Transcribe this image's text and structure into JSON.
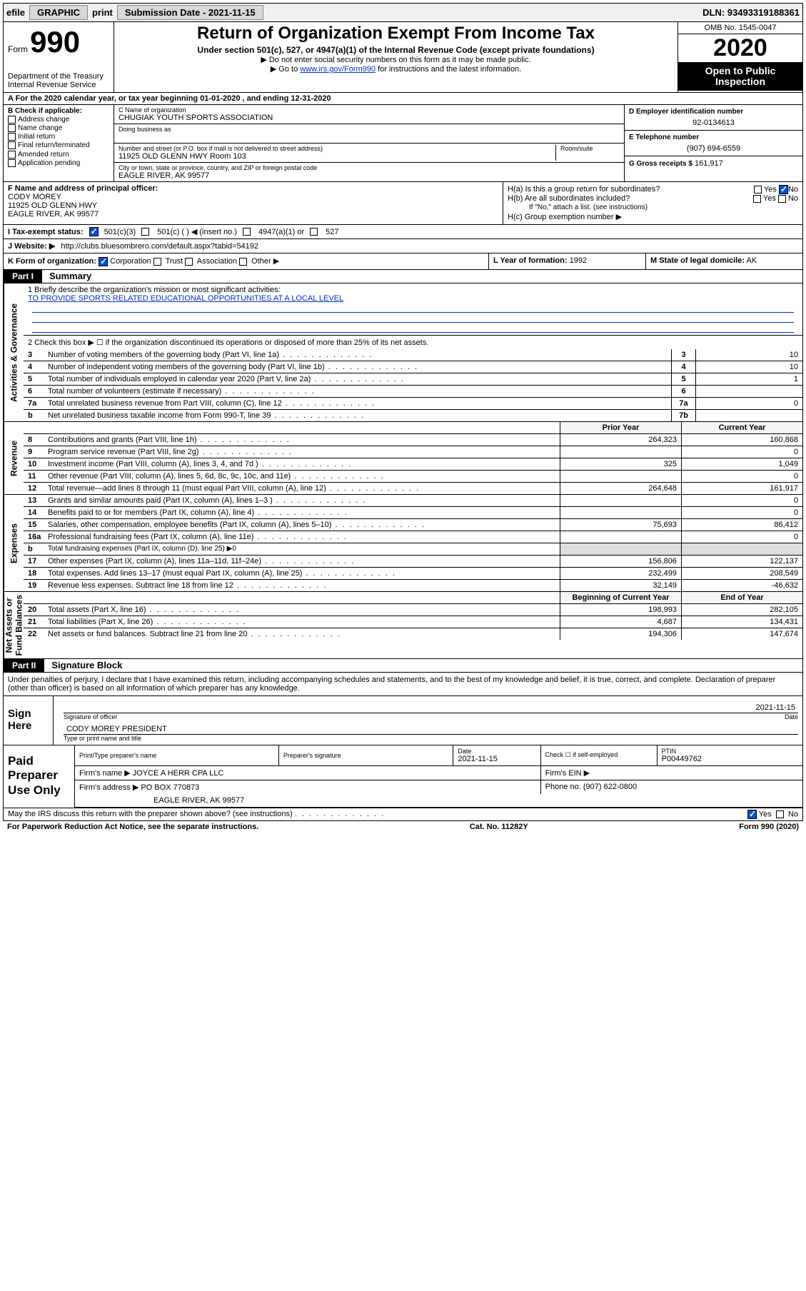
{
  "topbar": {
    "efile": "efile",
    "graphic": "GRAPHIC",
    "print": "print",
    "submission_label": "Submission Date - 2021-11-15",
    "dln": "DLN: 93493319188361"
  },
  "header": {
    "form_word": "Form",
    "form_num": "990",
    "dept": "Department of the Treasury\nInternal Revenue Service",
    "title": "Return of Organization Exempt From Income Tax",
    "sub": "Under section 501(c), 527, or 4947(a)(1) of the Internal Revenue Code (except private foundations)",
    "note1": "▶ Do not enter social security numbers on this form as it may be made public.",
    "note2_pre": "▶ Go to ",
    "note2_link": "www.irs.gov/Form990",
    "note2_post": " for instructions and the latest information.",
    "omb": "OMB No. 1545-0047",
    "year": "2020",
    "open": "Open to Public Inspection"
  },
  "row_a": "A For the 2020 calendar year, or tax year beginning 01-01-2020    , and ending 12-31-2020",
  "box_b": {
    "label": "B Check if applicable:",
    "items": [
      "Address change",
      "Name change",
      "Initial return",
      "Final return/terminated",
      "Amended return",
      "Application pending"
    ]
  },
  "box_c": {
    "name_lbl": "C Name of organization",
    "name": "CHUGIAK YOUTH SPORTS ASSOCIATION",
    "dba_lbl": "Doing business as",
    "addr_lbl": "Number and street (or P.O. box if mail is not delivered to street address)",
    "room_lbl": "Room/suite",
    "addr": "11925 OLD GLENN HWY Room 103",
    "city_lbl": "City or town, state or province, country, and ZIP or foreign postal code",
    "city": "EAGLE RIVER, AK  99577"
  },
  "box_d": {
    "lbl": "D Employer identification number",
    "val": "92-0134613"
  },
  "box_e": {
    "lbl": "E Telephone number",
    "val": "(907) 694-6559"
  },
  "box_g": {
    "lbl": "G Gross receipts $",
    "val": "161,917"
  },
  "box_f": {
    "lbl": "F Name and address of principal officer:",
    "name": "CODY MOREY",
    "addr1": "11925 OLD GLENN HWY",
    "addr2": "EAGLE RIVER, AK  99577"
  },
  "box_h": {
    "a": "H(a)  Is this a group return for subordinates?",
    "a_yes": "Yes",
    "a_no": "No",
    "b": "H(b)  Are all subordinates included?",
    "b_note": "If \"No,\" attach a list. (see instructions)",
    "c": "H(c)  Group exemption number ▶"
  },
  "row_i": {
    "lbl": "I    Tax-exempt status:",
    "o1": "501(c)(3)",
    "o2": "501(c) (   ) ◀ (insert no.)",
    "o3": "4947(a)(1) or",
    "o4": "527"
  },
  "row_j": {
    "lbl": "J    Website: ▶",
    "val": "http://clubs.bluesombrero.com/default.aspx?tabid=54192"
  },
  "row_k": {
    "lbl": "K Form of organization:",
    "o1": "Corporation",
    "o2": "Trust",
    "o3": "Association",
    "o4": "Other ▶"
  },
  "row_l": {
    "lbl": "L Year of formation:",
    "val": "1992"
  },
  "row_m": {
    "lbl": "M State of legal domicile:",
    "val": "AK"
  },
  "part1": {
    "tag": "Part I",
    "title": "Summary"
  },
  "summary": {
    "q1_lbl": "1   Briefly describe the organization's mission or most significant activities:",
    "q1_val": "TO PROVIDE SPORTS RELATED EDUCATIONAL OPPORTUNITIES AT A LOCAL LEVEL",
    "q2": "2   Check this box ▶ ☐  if the organization discontinued its operations or disposed of more than 25% of its net assets."
  },
  "gov_rows": [
    {
      "n": "3",
      "d": "Number of voting members of the governing body (Part VI, line 1a)",
      "c": "3",
      "v": "10"
    },
    {
      "n": "4",
      "d": "Number of independent voting members of the governing body (Part VI, line 1b)",
      "c": "4",
      "v": "10"
    },
    {
      "n": "5",
      "d": "Total number of individuals employed in calendar year 2020 (Part V, line 2a)",
      "c": "5",
      "v": "1"
    },
    {
      "n": "6",
      "d": "Total number of volunteers (estimate if necessary)",
      "c": "6",
      "v": ""
    },
    {
      "n": "7a",
      "d": "Total unrelated business revenue from Part VIII, column (C), line 12",
      "c": "7a",
      "v": "0"
    },
    {
      "n": "b",
      "d": "Net unrelated business taxable income from Form 990-T, line 39",
      "c": "7b",
      "v": ""
    }
  ],
  "rev_hdr": {
    "c2": "Prior Year",
    "c3": "Current Year"
  },
  "rev_rows": [
    {
      "n": "8",
      "d": "Contributions and grants (Part VIII, line 1h)",
      "p": "264,323",
      "c": "160,868"
    },
    {
      "n": "9",
      "d": "Program service revenue (Part VIII, line 2g)",
      "p": "",
      "c": "0"
    },
    {
      "n": "10",
      "d": "Investment income (Part VIII, column (A), lines 3, 4, and 7d )",
      "p": "325",
      "c": "1,049"
    },
    {
      "n": "11",
      "d": "Other revenue (Part VIII, column (A), lines 5, 6d, 8c, 9c, 10c, and 11e)",
      "p": "",
      "c": "0"
    },
    {
      "n": "12",
      "d": "Total revenue—add lines 8 through 11 (must equal Part VIII, column (A), line 12)",
      "p": "264,648",
      "c": "161,917"
    }
  ],
  "exp_rows": [
    {
      "n": "13",
      "d": "Grants and similar amounts paid (Part IX, column (A), lines 1–3 )",
      "p": "",
      "c": "0"
    },
    {
      "n": "14",
      "d": "Benefits paid to or for members (Part IX, column (A), line 4)",
      "p": "",
      "c": "0"
    },
    {
      "n": "15",
      "d": "Salaries, other compensation, employee benefits (Part IX, column (A), lines 5–10)",
      "p": "75,693",
      "c": "86,412"
    },
    {
      "n": "16a",
      "d": "Professional fundraising fees (Part IX, column (A), line 11e)",
      "p": "",
      "c": "0"
    },
    {
      "n": "b",
      "d": "Total fundraising expenses (Part IX, column (D), line 25) ▶0",
      "p": "—",
      "c": "—"
    },
    {
      "n": "17",
      "d": "Other expenses (Part IX, column (A), lines 11a–11d, 11f–24e)",
      "p": "156,806",
      "c": "122,137"
    },
    {
      "n": "18",
      "d": "Total expenses. Add lines 13–17 (must equal Part IX, column (A), line 25)",
      "p": "232,499",
      "c": "208,549"
    },
    {
      "n": "19",
      "d": "Revenue less expenses. Subtract line 18 from line 12",
      "p": "32,149",
      "c": "-46,632"
    }
  ],
  "na_hdr": {
    "c2": "Beginning of Current Year",
    "c3": "End of Year"
  },
  "na_rows": [
    {
      "n": "20",
      "d": "Total assets (Part X, line 16)",
      "p": "198,993",
      "c": "282,105"
    },
    {
      "n": "21",
      "d": "Total liabilities (Part X, line 26)",
      "p": "4,687",
      "c": "134,431"
    },
    {
      "n": "22",
      "d": "Net assets or fund balances. Subtract line 21 from line 20",
      "p": "194,306",
      "c": "147,674"
    }
  ],
  "vtabs": {
    "gov": "Activities & Governance",
    "rev": "Revenue",
    "exp": "Expenses",
    "na": "Net Assets or\nFund Balances"
  },
  "part2": {
    "tag": "Part II",
    "title": "Signature Block"
  },
  "perjury": "Under penalties of perjury, I declare that I have examined this return, including accompanying schedules and statements, and to the best of my knowledge and belief, it is true, correct, and complete. Declaration of preparer (other than officer) is based on all information of which preparer has any knowledge.",
  "sign": {
    "here": "Sign Here",
    "sig_lbl": "Signature of officer",
    "date": "2021-11-15",
    "date_lbl": "Date",
    "name": "CODY MOREY  PRESIDENT",
    "name_lbl": "Type or print name and title"
  },
  "prep": {
    "left": "Paid Preparer Use Only",
    "h1": "Print/Type preparer's name",
    "h2": "Preparer's signature",
    "h3": "Date",
    "h3v": "2021-11-15",
    "h4": "Check ☐ if self-employed",
    "h5": "PTIN",
    "h5v": "P00449762",
    "firm_lbl": "Firm's name    ▶",
    "firm": "JOYCE A HERR CPA LLC",
    "ein_lbl": "Firm's EIN ▶",
    "addr_lbl": "Firm's address ▶",
    "addr1": "PO BOX 770873",
    "addr2": "EAGLE RIVER, AK  99577",
    "phone_lbl": "Phone no.",
    "phone": "(907) 622-0800"
  },
  "discuss": {
    "q": "May the IRS discuss this return with the preparer shown above? (see instructions)",
    "yes": "Yes",
    "no": "No"
  },
  "footer": {
    "pra": "For Paperwork Reduction Act Notice, see the separate instructions.",
    "cat": "Cat. No. 11282Y",
    "form": "Form 990 (2020)"
  },
  "colors": {
    "link": "#0030cc",
    "checked": "#0050e0"
  }
}
